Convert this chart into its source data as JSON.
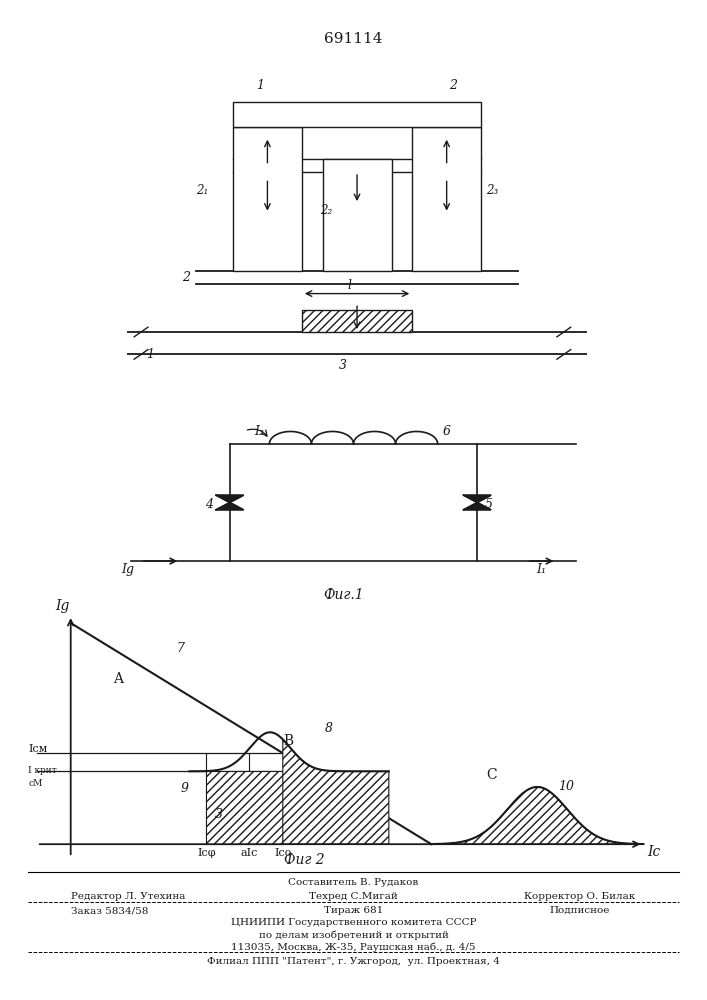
{
  "title": "691114",
  "fig_width": 7.07,
  "fig_height": 10.0,
  "bg_color": "#ffffff",
  "text_color": "#1a1a1a",
  "footer": {
    "line1_left": "Редактор Л. Утехина",
    "line1_center_top": "Составитель В. Рудаков",
    "line1_center": "Техред С.Мигай",
    "line1_right": "Корректор О. Билак",
    "line2_left": "Заказ 5834/58",
    "line2_center": "Тираж 681",
    "line2_right": "Подписное",
    "line3": "ЦНИИПИ Государственного комитета СССР",
    "line4": "по делам изобретений и открытий",
    "line5": "113035, Москва, Ж-35, Раушская наб., д. 4/5",
    "line6": "Филиал ППП \"Патент\", г. Ужгород,  ул. Проектная, 4"
  }
}
